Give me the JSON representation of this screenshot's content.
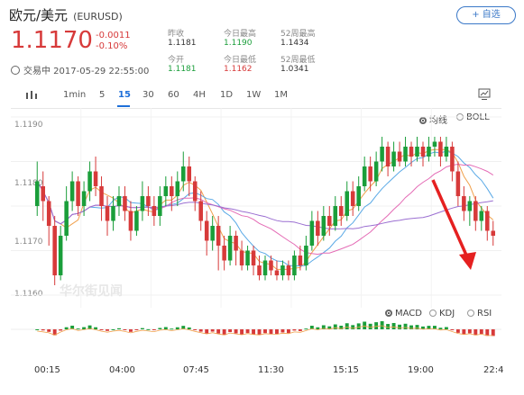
{
  "header": {
    "title": "欧元/美元",
    "symbol": "(EURUSD)",
    "add_label": "+ 自选",
    "price": "1.1170",
    "change": "-0.0011",
    "change_pct": "-0.10%",
    "status_time": "交易中 2017-05-29 22:55:00"
  },
  "stats": [
    {
      "label": "昨收",
      "value": "1.1181",
      "tone": "neutral"
    },
    {
      "label": "今日最高",
      "value": "1.1190",
      "tone": "green"
    },
    {
      "label": "52周最高",
      "value": "1.1434",
      "tone": "neutral"
    },
    {
      "label": "今开",
      "value": "1.1181",
      "tone": "green"
    },
    {
      "label": "今日最低",
      "value": "1.1162",
      "tone": "red"
    },
    {
      "label": "52周最低",
      "value": "1.0341",
      "tone": "neutral"
    }
  ],
  "toolbar": {
    "timeframes": [
      "1min",
      "5",
      "15",
      "30",
      "60",
      "4H",
      "1D",
      "1W",
      "1M"
    ],
    "active": "15"
  },
  "main_indicators": [
    {
      "label": "均线",
      "selected": true
    },
    {
      "label": "BOLL",
      "selected": false
    }
  ],
  "sub_indicators": [
    {
      "label": "MACD",
      "selected": true
    },
    {
      "label": "KDJ",
      "selected": false
    },
    {
      "label": "RSI",
      "selected": false
    }
  ],
  "y_ticks": [
    "1.1190",
    "1.1180",
    "1.1170",
    "1.1160"
  ],
  "x_ticks": [
    "00:15",
    "04:00",
    "07:45",
    "11:30",
    "15:15",
    "19:00",
    "22:4"
  ],
  "watermark": "华尔街见闻",
  "colors": {
    "up": "#1a9e3a",
    "down": "#d73a3a",
    "accent": "#1e6fd9"
  },
  "chart_data": {
    "type": "candlestick",
    "ylim": [
      1.1158,
      1.1194
    ],
    "candles": [
      [
        1.1176,
        1.1181,
        1.1185,
        1.1174
      ],
      [
        1.118,
        1.1177,
        1.1183,
        1.1173
      ],
      [
        1.1177,
        1.1172,
        1.1178,
        1.1168
      ],
      [
        1.1172,
        1.1162,
        1.1174,
        1.116
      ],
      [
        1.1162,
        1.117,
        1.1172,
        1.1161
      ],
      [
        1.117,
        1.1177,
        1.118,
        1.1169
      ],
      [
        1.1177,
        1.1181,
        1.1183,
        1.1175
      ],
      [
        1.1181,
        1.1176,
        1.1182,
        1.1174
      ],
      [
        1.1176,
        1.1179,
        1.1181,
        1.1174
      ],
      [
        1.1179,
        1.1183,
        1.1185,
        1.1177
      ],
      [
        1.1183,
        1.118,
        1.1186,
        1.1178
      ],
      [
        1.118,
        1.1176,
        1.1182,
        1.1173
      ],
      [
        1.1176,
        1.1173,
        1.1178,
        1.117
      ],
      [
        1.1173,
        1.1176,
        1.1178,
        1.1171
      ],
      [
        1.1176,
        1.1178,
        1.118,
        1.1174
      ],
      [
        1.1178,
        1.1175,
        1.118,
        1.1173
      ],
      [
        1.1175,
        1.1171,
        1.1177,
        1.1169
      ],
      [
        1.1171,
        1.1175,
        1.1176,
        1.117
      ],
      [
        1.1175,
        1.1178,
        1.1181,
        1.1173
      ],
      [
        1.1178,
        1.1176,
        1.118,
        1.1174
      ],
      [
        1.1176,
        1.1174,
        1.1178,
        1.1172
      ],
      [
        1.1174,
        1.1178,
        1.118,
        1.1172
      ],
      [
        1.1178,
        1.118,
        1.1182,
        1.1176
      ],
      [
        1.118,
        1.1178,
        1.1182,
        1.1175
      ],
      [
        1.1178,
        1.1181,
        1.1183,
        1.1176
      ],
      [
        1.1181,
        1.1184,
        1.1187,
        1.1179
      ],
      [
        1.1184,
        1.1181,
        1.1186,
        1.1178
      ],
      [
        1.1181,
        1.1177,
        1.1182,
        1.1175
      ],
      [
        1.1177,
        1.1173,
        1.1179,
        1.1171
      ],
      [
        1.1173,
        1.1169,
        1.1175,
        1.1166
      ],
      [
        1.1169,
        1.1172,
        1.1174,
        1.1167
      ],
      [
        1.1172,
        1.1168,
        1.1174,
        1.1163
      ],
      [
        1.1168,
        1.1165,
        1.117,
        1.1163
      ],
      [
        1.1165,
        1.117,
        1.1172,
        1.1164
      ],
      [
        1.117,
        1.1167,
        1.1171,
        1.1164
      ],
      [
        1.1167,
        1.1164,
        1.1169,
        1.1163
      ],
      [
        1.1164,
        1.1167,
        1.1168,
        1.1163
      ],
      [
        1.1167,
        1.1164,
        1.1168,
        1.1162
      ],
      [
        1.1164,
        1.1162,
        1.1166,
        1.1161
      ],
      [
        1.1162,
        1.1165,
        1.1166,
        1.1161
      ],
      [
        1.1165,
        1.1163,
        1.1166,
        1.1162
      ],
      [
        1.1163,
        1.1162,
        1.1165,
        1.1161
      ],
      [
        1.1162,
        1.1164,
        1.1165,
        1.1161
      ],
      [
        1.1164,
        1.1162,
        1.1165,
        1.1161
      ],
      [
        1.1162,
        1.1166,
        1.1167,
        1.1161
      ],
      [
        1.1166,
        1.1164,
        1.1168,
        1.1163
      ],
      [
        1.1164,
        1.1168,
        1.117,
        1.1163
      ],
      [
        1.1168,
        1.1173,
        1.1175,
        1.1167
      ],
      [
        1.1173,
        1.117,
        1.1175,
        1.1168
      ],
      [
        1.117,
        1.1174,
        1.1176,
        1.1169
      ],
      [
        1.1174,
        1.1172,
        1.1176,
        1.117
      ],
      [
        1.1172,
        1.1176,
        1.1178,
        1.1171
      ],
      [
        1.1176,
        1.1174,
        1.1178,
        1.1172
      ],
      [
        1.1174,
        1.1179,
        1.1181,
        1.1173
      ],
      [
        1.1179,
        1.1176,
        1.1181,
        1.1174
      ],
      [
        1.1176,
        1.118,
        1.1182,
        1.1175
      ],
      [
        1.118,
        1.1184,
        1.1186,
        1.1179
      ],
      [
        1.1184,
        1.1181,
        1.1186,
        1.1179
      ],
      [
        1.1181,
        1.1185,
        1.1187,
        1.118
      ],
      [
        1.1185,
        1.1188,
        1.119,
        1.1183
      ],
      [
        1.1188,
        1.1184,
        1.1189,
        1.1182
      ],
      [
        1.1184,
        1.1187,
        1.1189,
        1.1183
      ],
      [
        1.1187,
        1.1185,
        1.1189,
        1.1184
      ],
      [
        1.1185,
        1.1188,
        1.119,
        1.1184
      ],
      [
        1.1188,
        1.1186,
        1.1189,
        1.1184
      ],
      [
        1.1186,
        1.1188,
        1.119,
        1.1185
      ],
      [
        1.1188,
        1.1186,
        1.1189,
        1.1184
      ],
      [
        1.1186,
        1.1188,
        1.119,
        1.1185
      ],
      [
        1.1188,
        1.1189,
        1.119,
        1.1186
      ],
      [
        1.1189,
        1.1186,
        1.119,
        1.1184
      ],
      [
        1.1186,
        1.1188,
        1.119,
        1.1185
      ],
      [
        1.1188,
        1.1183,
        1.1189,
        1.1181
      ],
      [
        1.1183,
        1.1178,
        1.1185,
        1.1176
      ],
      [
        1.1178,
        1.1175,
        1.118,
        1.1173
      ],
      [
        1.1175,
        1.1177,
        1.1178,
        1.1172
      ],
      [
        1.1177,
        1.1173,
        1.1178,
        1.1171
      ],
      [
        1.1173,
        1.1175,
        1.1176,
        1.1171
      ],
      [
        1.1175,
        1.1171,
        1.1176,
        1.1169
      ],
      [
        1.1171,
        1.117,
        1.1173,
        1.1168
      ]
    ]
  }
}
